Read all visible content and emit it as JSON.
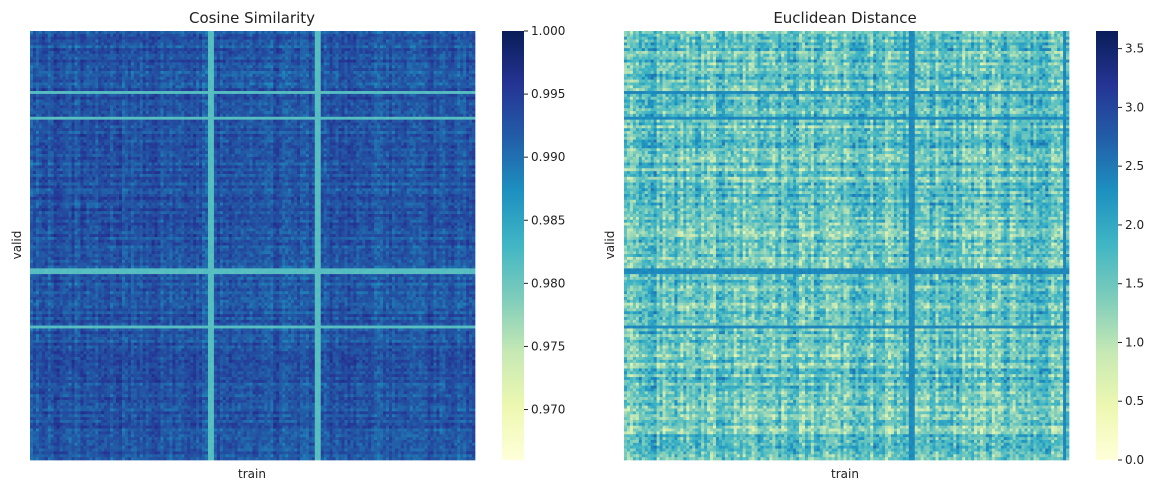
{
  "chart_data": [
    {
      "type": "heatmap",
      "title": "Cosine Similarity",
      "xlabel": "train",
      "ylabel": "valid",
      "colormap": "YlGnBu",
      "colormap_stops": [
        "#ffffd9",
        "#edf8b1",
        "#c7e9b4",
        "#7fcdbb",
        "#41b6c4",
        "#1d91c0",
        "#225ea8",
        "#253494",
        "#081d58"
      ],
      "vmin": 0.966,
      "vmax": 1.0,
      "colorbar_ticks": [
        {
          "value": 0.97,
          "label": "0.970"
        },
        {
          "value": 0.975,
          "label": "0.975"
        },
        {
          "value": 0.98,
          "label": "0.980"
        },
        {
          "value": 0.985,
          "label": "0.985"
        },
        {
          "value": 0.99,
          "label": "0.990"
        },
        {
          "value": 0.995,
          "label": "0.995"
        },
        {
          "value": 1.0,
          "label": "1.000"
        }
      ],
      "typical_value": 0.9925,
      "value_spread": 0.0025,
      "highlight_col_fractions": [
        0.4,
        0.41,
        0.645,
        0.648
      ],
      "highlight_row_fractions": [
        0.14,
        0.2,
        0.557,
        0.56,
        0.69
      ],
      "highlight_value": 0.9815,
      "axis_ticks_shown": false
    },
    {
      "type": "heatmap",
      "title": "Euclidean Distance",
      "xlabel": "train",
      "ylabel": "valid",
      "colormap": "YlGnBu",
      "colormap_stops": [
        "#ffffd9",
        "#edf8b1",
        "#c7e9b4",
        "#7fcdbb",
        "#41b6c4",
        "#1d91c0",
        "#225ea8",
        "#253494",
        "#081d58"
      ],
      "vmin": 0.0,
      "vmax": 3.65,
      "colorbar_ticks": [
        {
          "value": 0.0,
          "label": "0.0"
        },
        {
          "value": 0.5,
          "label": "0.5"
        },
        {
          "value": 1.0,
          "label": "1.0"
        },
        {
          "value": 1.5,
          "label": "1.5"
        },
        {
          "value": 2.0,
          "label": "2.0"
        },
        {
          "value": 2.5,
          "label": "2.5"
        },
        {
          "value": 3.0,
          "label": "3.0"
        },
        {
          "value": 3.5,
          "label": "3.5"
        }
      ],
      "typical_value": 1.55,
      "value_spread": 0.55,
      "highlight_col_fractions": [
        0.645,
        0.648,
        0.99
      ],
      "highlight_row_fractions": [
        0.14,
        0.2,
        0.557,
        0.56,
        0.69
      ],
      "highlight_value": 2.35,
      "axis_ticks_shown": false
    }
  ]
}
